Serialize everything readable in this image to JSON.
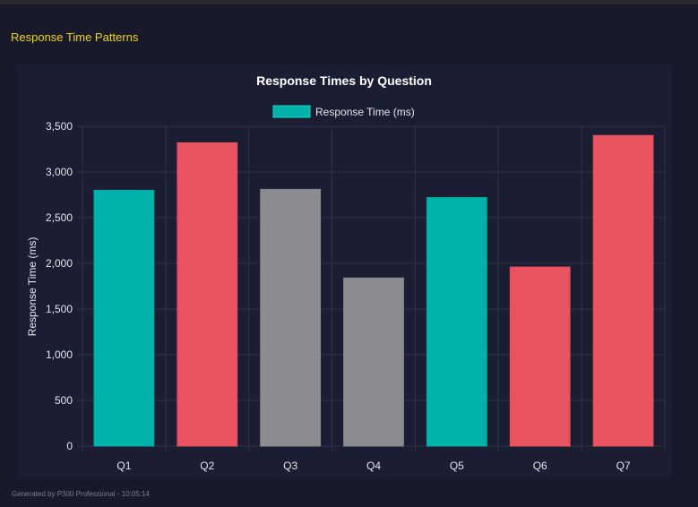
{
  "section_title": "Response Time Patterns",
  "footer": "Generated by P300 Professional - 10:05:14",
  "colors": {
    "teal": "#00b3aa",
    "red": "#e8535f",
    "gray": "#8c8b8f",
    "title": "#f2d21b"
  },
  "chart_data": {
    "type": "bar",
    "title": "Response Times by Question",
    "categories": [
      "Q1",
      "Q2",
      "Q3",
      "Q4",
      "Q5",
      "Q6",
      "Q7"
    ],
    "series": [
      {
        "name": "Response Time (ms)",
        "values": [
          2800,
          3320,
          2810,
          1840,
          2720,
          1960,
          3400
        ]
      }
    ],
    "bar_colors": [
      "#00b3aa",
      "#e8535f",
      "#8c8b8f",
      "#8c8b8f",
      "#00b3aa",
      "#e8535f",
      "#e8535f"
    ],
    "xlabel": "",
    "ylabel": "Response Time (ms)",
    "ylim": [
      0,
      3500
    ],
    "yticks": [
      0,
      500,
      1000,
      1500,
      2000,
      2500,
      3000,
      3500
    ],
    "ytick_labels": [
      "0",
      "500",
      "1,000",
      "1,500",
      "2,000",
      "2,500",
      "3,000",
      "3,500"
    ],
    "grid": true,
    "legend": "top"
  }
}
